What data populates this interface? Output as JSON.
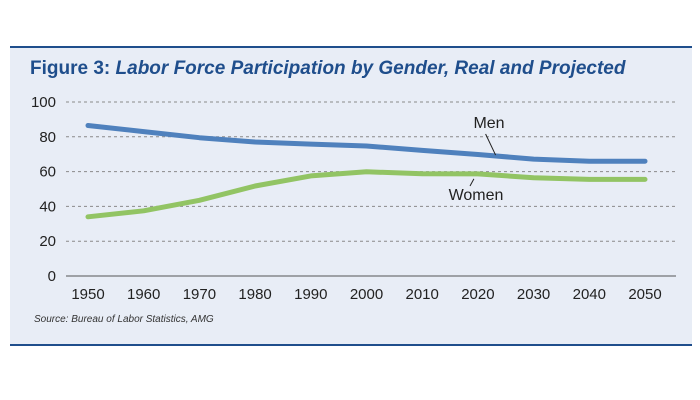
{
  "figure": {
    "label": "Figure 3:",
    "title": "Labor Force Participation by Gender, Real and Projected",
    "source": "Source: Bureau of Labor Statistics, AMG"
  },
  "chart_data": {
    "type": "line",
    "title": "Labor Force Participation by Gender, Real and Projected",
    "xlabel": "",
    "ylabel": "",
    "x": [
      1950,
      1960,
      1970,
      1980,
      1990,
      2000,
      2010,
      2020,
      2030,
      2040,
      2050
    ],
    "ylim": [
      0,
      100
    ],
    "yticks": [
      0,
      20,
      40,
      60,
      80,
      100
    ],
    "grid": true,
    "legend": "inline labels",
    "series": [
      {
        "name": "Men",
        "color": "#4f81bd",
        "values": [
          86.5,
          83,
          79.5,
          77,
          75.8,
          74.7,
          72.2,
          69.8,
          67.2,
          66,
          66
        ]
      },
      {
        "name": "Women",
        "color": "#92c464",
        "values": [
          34,
          37.5,
          43.5,
          51.7,
          57.5,
          59.9,
          58.8,
          58.7,
          56.5,
          55.5,
          55.5
        ]
      }
    ]
  },
  "colors": {
    "accent": "#1f4e8c",
    "panel": "#e8edf6"
  }
}
